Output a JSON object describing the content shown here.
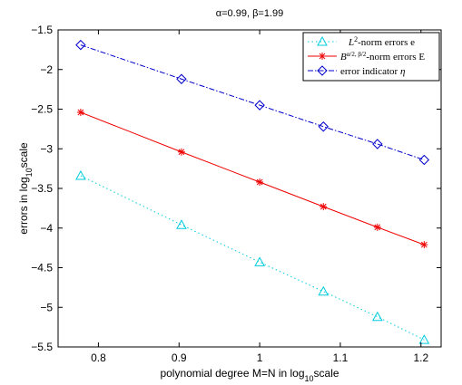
{
  "chart_data": {
    "type": "line",
    "title": "α=0.99, β=1.99",
    "xlabel": "polynomial degree M=N in log10scale",
    "ylabel": "errors in log10scale",
    "xlim": [
      0.75,
      1.225
    ],
    "ylim": [
      -5.5,
      -1.5
    ],
    "x_ticks": [
      0.8,
      0.9,
      1.0,
      1.1,
      1.2
    ],
    "x_tick_labels": [
      "0.8",
      "0.9",
      "1",
      "1.1",
      "1.2"
    ],
    "y_ticks": [
      -1.5,
      -2,
      -2.5,
      -3,
      -3.5,
      -4,
      -4.5,
      -5,
      -5.5
    ],
    "y_tick_labels": [
      "−1.5",
      "−2",
      "−2.5",
      "−3",
      "−3.5",
      "−4",
      "−4.5",
      "−5",
      "−5.5"
    ],
    "grid": false,
    "legend_position": "top-right",
    "x": [
      0.778,
      0.903,
      1.0,
      1.079,
      1.146,
      1.204
    ],
    "series": [
      {
        "name": "L2-norm errors e",
        "legend_label": "L²-norm errors e",
        "color": "#00ccdd",
        "line_style": "dotted",
        "marker": "triangle",
        "values": [
          -3.34,
          -3.96,
          -4.43,
          -4.8,
          -5.12,
          -5.41
        ]
      },
      {
        "name": "Bα/2,β/2-norm errors E",
        "legend_label": "B^(α/2,β/2)-norm errors E",
        "color": "#ee0000",
        "line_style": "solid",
        "marker": "asterisk",
        "values": [
          -2.54,
          -3.04,
          -3.42,
          -3.73,
          -3.99,
          -4.21
        ]
      },
      {
        "name": "error indicator η",
        "legend_label": "error indicator η",
        "color": "#0000cc",
        "line_style": "dashdot",
        "marker": "diamond",
        "values": [
          -1.69,
          -2.12,
          -2.45,
          -2.72,
          -2.94,
          -3.14
        ]
      }
    ]
  }
}
